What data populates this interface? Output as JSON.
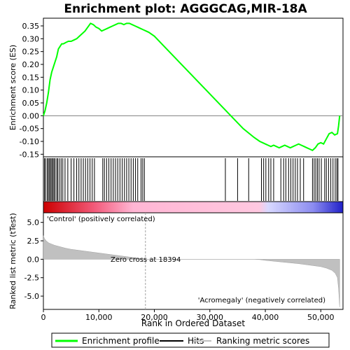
{
  "chart_data": {
    "type": "line",
    "title": "Enrichment plot: AGGGCAG,MIR-18A",
    "xlabel": "Rank in Ordered Dataset",
    "es_panel": {
      "ylabel": "Enrichment score (ES)",
      "ylim": [
        -0.16,
        0.38
      ],
      "yticks": [
        -0.15,
        -0.1,
        -0.05,
        0.0,
        0.05,
        0.1,
        0.15,
        0.2,
        0.25,
        0.3,
        0.35
      ],
      "ytick_labels": [
        "-0.15",
        "-0.10",
        "-0.05",
        "0.00",
        "0.05",
        "0.10",
        "0.15",
        "0.20",
        "0.25",
        "0.30",
        "0.35"
      ],
      "series": [
        {
          "name": "Enrichment profile",
          "color": "#00ff00",
          "x": [
            0,
            300,
            600,
            900,
            1200,
            1500,
            1800,
            2100,
            2400,
            2700,
            3000,
            3300,
            3600,
            4000,
            4500,
            5000,
            5500,
            6000,
            6500,
            7000,
            7500,
            8000,
            8500,
            9000,
            9500,
            10000,
            10500,
            11000,
            11500,
            12000,
            12500,
            13000,
            13500,
            14000,
            14500,
            15000,
            15500,
            16000,
            16500,
            17000,
            17500,
            18000,
            18500,
            19000,
            20000,
            22000,
            24000,
            26000,
            28000,
            30000,
            32000,
            34000,
            36000,
            38000,
            39000,
            39500,
            40000,
            40500,
            41000,
            41500,
            42000,
            42500,
            43000,
            43500,
            44000,
            44500,
            45000,
            45500,
            46000,
            46500,
            47000,
            47500,
            48000,
            48500,
            49000,
            49500,
            50000,
            50500,
            51000,
            51500,
            52000,
            52500,
            53000,
            53200,
            53400
          ],
          "values": [
            0.0,
            0.02,
            0.05,
            0.09,
            0.14,
            0.17,
            0.19,
            0.21,
            0.23,
            0.26,
            0.27,
            0.28,
            0.28,
            0.285,
            0.29,
            0.29,
            0.295,
            0.3,
            0.31,
            0.32,
            0.33,
            0.345,
            0.36,
            0.355,
            0.345,
            0.34,
            0.33,
            0.335,
            0.34,
            0.345,
            0.35,
            0.355,
            0.36,
            0.36,
            0.355,
            0.36,
            0.36,
            0.355,
            0.35,
            0.345,
            0.34,
            0.335,
            0.33,
            0.325,
            0.31,
            0.265,
            0.22,
            0.175,
            0.13,
            0.085,
            0.04,
            -0.005,
            -0.05,
            -0.085,
            -0.1,
            -0.105,
            -0.11,
            -0.115,
            -0.12,
            -0.115,
            -0.12,
            -0.125,
            -0.12,
            -0.115,
            -0.12,
            -0.125,
            -0.12,
            -0.115,
            -0.11,
            -0.115,
            -0.12,
            -0.125,
            -0.13,
            -0.135,
            -0.125,
            -0.11,
            -0.105,
            -0.11,
            -0.09,
            -0.07,
            -0.065,
            -0.075,
            -0.07,
            -0.04,
            0.0
          ]
        }
      ]
    },
    "hits_panel": {
      "legend_name": "Hits",
      "color": "#000000",
      "positions": [
        200,
        400,
        700,
        900,
        1100,
        1300,
        1500,
        1700,
        1900,
        2100,
        2400,
        2600,
        2900,
        3200,
        3500,
        3900,
        4400,
        5000,
        5500,
        6000,
        6400,
        6800,
        7200,
        7600,
        8000,
        8400,
        8800,
        9200,
        10700,
        11000,
        11400,
        11800,
        12200,
        12600,
        13000,
        13400,
        13800,
        14200,
        14600,
        15000,
        15400,
        15800,
        16200,
        16600,
        17000,
        17600,
        17900,
        18200,
        32800,
        35000,
        37000,
        39300,
        39700,
        40100,
        40600,
        41000,
        41500,
        42800,
        43300,
        43700,
        44200,
        44600,
        45000,
        45400,
        45800,
        46300,
        46900,
        48500,
        48800,
        49100,
        49400,
        49700,
        50100,
        50700,
        51000,
        51400,
        51800,
        52200,
        52600,
        52900,
        53100
      ]
    },
    "ranking_panel": {
      "ylabel": "Ranked list metric (tTest)",
      "legend_name": "Ranking metric scores",
      "ylim": [
        -6.8,
        6.3
      ],
      "yticks": [
        -5.0,
        -2.5,
        0.0,
        2.5,
        5.0
      ],
      "ytick_labels": [
        "-5.0",
        "-2.5",
        "0.0",
        "2.5",
        "5.0"
      ],
      "x": [
        0,
        200,
        500,
        1000,
        2000,
        3000,
        4000,
        5000,
        7000,
        9000,
        11000,
        13000,
        15000,
        17000,
        18394,
        20000,
        25000,
        30000,
        35000,
        38000,
        39000,
        40000,
        42000,
        44000,
        46000,
        48000,
        50000,
        51000,
        52000,
        52600,
        53000,
        53200,
        53400
      ],
      "values": [
        3.2,
        2.8,
        2.5,
        2.2,
        1.9,
        1.7,
        1.5,
        1.35,
        1.15,
        0.95,
        0.75,
        0.55,
        0.35,
        0.15,
        0.0,
        0.0,
        0.0,
        0.0,
        0.0,
        0.0,
        -0.05,
        -0.15,
        -0.3,
        -0.45,
        -0.6,
        -0.8,
        -1.0,
        -1.2,
        -1.5,
        -1.9,
        -2.5,
        -4.0,
        -6.5
      ],
      "color": "#c0c0c0",
      "zero_cross_label": "Zero cross at 18394",
      "zero_cross_rank": 18394,
      "pos_label": "'Control' (positively correlated)",
      "neg_label": "'Acromegaly' (negatively correlated)",
      "pos_label_color": "#cc0000",
      "neg_label_color": "#0000cc"
    },
    "xlim": [
      0,
      54000
    ],
    "xticks": [
      0,
      10000,
      20000,
      30000,
      40000,
      50000
    ],
    "xtick_labels": [
      "0",
      "10,000",
      "20,000",
      "30,000",
      "40,000",
      "50,000"
    ],
    "legend": [
      {
        "name": "Enrichment profile",
        "color": "#00ff00"
      },
      {
        "name": "Hits",
        "color": "#000000"
      },
      {
        "name": "Ranking metric scores",
        "color": "#c0c0c0"
      }
    ]
  }
}
